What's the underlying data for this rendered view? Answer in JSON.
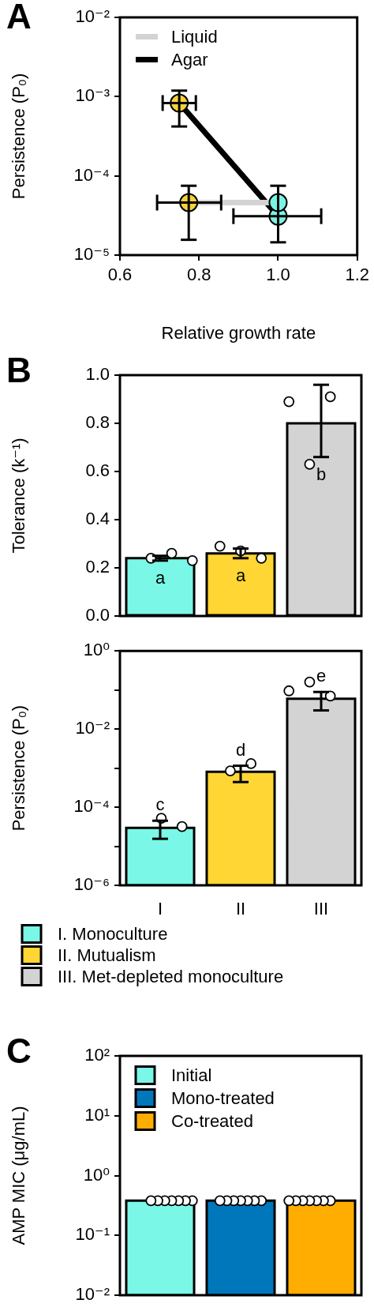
{
  "chart_data": [
    {
      "type": "line",
      "title": "A",
      "xlabel": "Relative growth rate",
      "ylabel": "Persistence (P₀)",
      "xlim": [
        0.6,
        1.2
      ],
      "xticks": [
        0.6,
        0.8,
        {
          "value": 1.0,
          "label": "1.0"
        },
        1.2
      ],
      "ylim": [
        1e-05,
        0.01
      ],
      "yticks": [
        {
          "value": 1e-05,
          "label": "10⁻⁵"
        },
        {
          "value": 0.0001,
          "label": "10⁻⁴"
        },
        {
          "value": 0.001,
          "label": "10⁻³"
        },
        {
          "value": 0.01,
          "label": "10⁻²"
        }
      ],
      "log": "y",
      "legend": "top left",
      "marker": "circle",
      "series": [
        {
          "name": "Liquid",
          "color": "#d3d3d3",
          "x": [
            0.774,
            1.0
          ],
          "values": [
            4.6e-05,
            4.6e-05
          ],
          "colors": [
            "#f6d13a",
            "#79f3e3"
          ],
          "errors": [
            [
              1.56e-05,
              7.5e-05
            ],
            null
          ],
          "xerrors": [
            [
              0.694,
              0.856
            ],
            null
          ]
        },
        {
          "name": "Agar",
          "color": "#000000",
          "x": [
            0.75,
            1.0
          ],
          "values": [
            0.00083,
            3.1e-05
          ],
          "colors": [
            "#f6d13a",
            "#79f3e3"
          ],
          "errors": [
            [
              0.00042,
              0.00119
            ],
            [
              1.45e-05,
              7.5e-05
            ]
          ],
          "xerrors": [
            [
              0.708,
              0.792
            ],
            [
              0.887,
              1.109
            ]
          ]
        }
      ]
    },
    {
      "type": "bar",
      "title": "B",
      "ylabel": "Tolerance (k⁻¹)",
      "categories": [
        "I",
        "II",
        "III"
      ],
      "tick_labels": "y",
      "ylim": [
        0,
        1
      ],
      "yticks": [
        {
          "value": 0,
          "label": "0.0"
        },
        0.2,
        0.4,
        0.6,
        0.8,
        {
          "value": 1,
          "label": "1.0"
        }
      ],
      "series": [
        {
          "type": "bar",
          "colors": [
            "#7af7e6",
            "#ffd633",
            "#d3d3d3"
          ],
          "values": [
            0.24,
            0.26,
            0.8
          ],
          "errors": [
            0.01,
            0.02,
            [
              0.66,
              0.96
            ]
          ]
        },
        {
          "type": "scatter",
          "color": "#ffffff",
          "x": [
            "I",
            "I",
            "I",
            "II",
            "II",
            "II",
            "III",
            "III",
            "III"
          ],
          "values": [
            0.24,
            0.26,
            0.23,
            0.29,
            0.27,
            0.24,
            0.89,
            0.63,
            0.91
          ]
        }
      ],
      "annotations": [
        {
          "text": "a",
          "x": "I",
          "y": 0.23
        },
        {
          "text": "a",
          "x": "II",
          "y": 0.24
        },
        {
          "text": "b",
          "x": "III",
          "y": 0.66
        }
      ]
    },
    {
      "type": "bar",
      "ylabel": "Persistence (P₀)",
      "categories": [
        "I",
        "II",
        "III"
      ],
      "log": "y",
      "ylim": [
        1e-06,
        1
      ],
      "yticks": [
        {
          "value": 1e-06,
          "label": "10⁻⁶"
        },
        {
          "value": 1e-05,
          "label": null
        },
        {
          "value": 0.0001,
          "label": "10⁻⁴"
        },
        {
          "value": 0.001,
          "label": null
        },
        {
          "value": 0.01,
          "label": "10⁻²"
        },
        {
          "value": 0.1,
          "label": null
        },
        {
          "value": 1,
          "label": "10⁰"
        }
      ],
      "legend": "bottom",
      "series": [
        {
          "type": "bar",
          "name": "I. Monoculture",
          "color": "#7af7e6",
          "values": [
            2.95e-05,
            null,
            null
          ],
          "errors": [
            [
              1.55e-05,
              4.5e-05
            ],
            null,
            null
          ]
        },
        {
          "type": "bar",
          "name": "II. Mutualism",
          "color": "#ffd633",
          "values": [
            null,
            0.00081,
            null
          ],
          "errors": [
            null,
            [
              0.00044,
              0.00115
            ],
            null
          ]
        },
        {
          "type": "bar",
          "name": "III. Met-depleted monoculture",
          "color": "#d3d3d3",
          "values": [
            null,
            null,
            0.06
          ],
          "errors": [
            null,
            null,
            [
              0.03,
              0.089
            ]
          ]
        },
        {
          "type": "scatter",
          "color": "#ffffff",
          "x": [
            "I",
            "I",
            "II",
            "II",
            "III",
            "III",
            "III"
          ],
          "values": [
            5.2e-05,
            3.2e-05,
            0.00085,
            0.0013,
            0.095,
            0.16,
            0.07
          ]
        }
      ],
      "annotations": [
        {
          "text": "c",
          "x": "I",
          "y": 4.5e-05
        },
        {
          "text": "d",
          "x": "II",
          "y": 0.00115
        },
        {
          "text": "e",
          "x": "III",
          "y": 0.089
        }
      ]
    },
    {
      "type": "bar",
      "title": "C",
      "ylabel": "AMP MIC (μg/mL)",
      "categories": [
        null,
        null,
        null
      ],
      "log": "y",
      "ylim": [
        0.01,
        100
      ],
      "yticks": [
        {
          "value": 0.01,
          "label": "10⁻²"
        },
        {
          "value": 0.1,
          "label": "10⁻¹"
        },
        {
          "value": 1,
          "label": "10⁰"
        },
        {
          "value": 10,
          "label": "10¹"
        },
        {
          "value": 100,
          "label": "10²"
        }
      ],
      "legend": "top left",
      "series": [
        {
          "type": "bar",
          "name": "Initial",
          "color": "#7af7e6",
          "values": [
            0.38,
            null,
            null
          ]
        },
        {
          "type": "bar",
          "name": "Mono-treated",
          "color": "#0077bb",
          "values": [
            null,
            0.38,
            null
          ]
        },
        {
          "type": "bar",
          "name": "Co-treated",
          "color": "#ffad00",
          "values": [
            null,
            null,
            0.38
          ]
        },
        {
          "type": "scatter",
          "color": "#ffffff",
          "values": [
            0.38,
            0.38,
            0.38
          ]
        },
        {
          "type": "scatter",
          "color": "#ffffff",
          "values": [
            0.38,
            0.38,
            0.38
          ]
        },
        {
          "type": "scatter",
          "color": "#ffffff",
          "values": [
            0.38,
            0.38,
            0.38
          ]
        },
        {
          "type": "scatter",
          "color": "#ffffff",
          "values": [
            0.38,
            0.38,
            0.38
          ]
        },
        {
          "type": "scatter",
          "color": "#ffffff",
          "values": [
            0.38,
            0.38,
            0.38
          ]
        },
        {
          "type": "scatter",
          "color": "#ffffff",
          "values": [
            0.38,
            0.38,
            0.38
          ]
        },
        {
          "type": "scatter",
          "color": "#ffffff",
          "values": [
            0.38,
            0.38,
            0.38
          ]
        }
      ]
    }
  ]
}
